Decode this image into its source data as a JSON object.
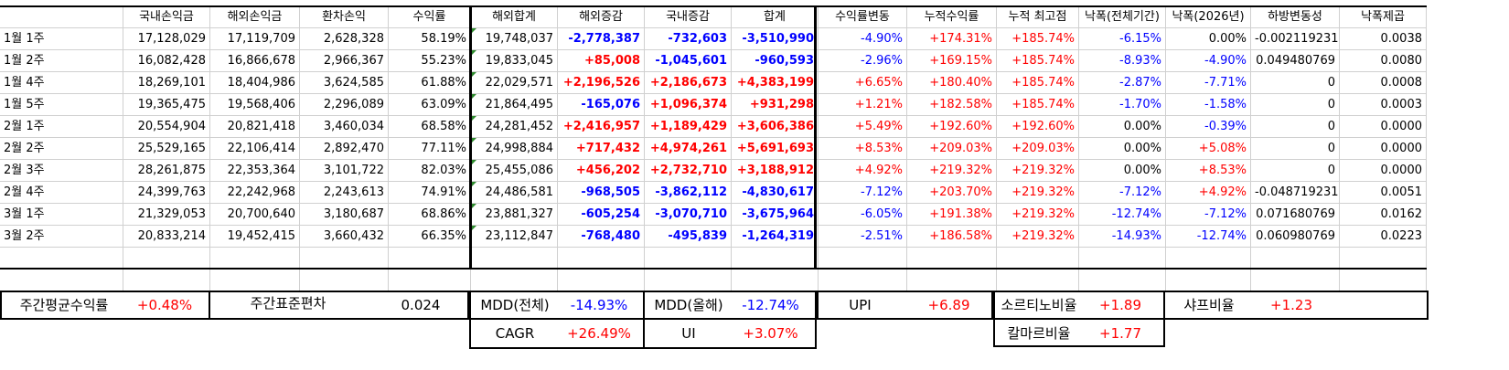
{
  "headers": [
    "국내손익금",
    "해외손익금",
    "환차손익",
    "수익률",
    "해외합계",
    "해외증감",
    "국내증감",
    "합계",
    "수익률변동",
    "누적수익률",
    "누적 최고점",
    "낙폭(전체기간)",
    "낙폭(2026년)",
    "하방변동성",
    "낙폭제곱"
  ],
  "rows": [
    {
      "label": "1월 1주",
      "cells": [
        "17,128,029",
        "17,119,709",
        "2,628,328",
        "58.19%",
        "19,748,037",
        "-2,778,387",
        "-732,603",
        "-3,510,990",
        "-4.90%",
        "+174.31%",
        "+185.74%",
        "-6.15%",
        "0.00%",
        "-0.002119231",
        "0.0038"
      ]
    },
    {
      "label": "1월 2주",
      "cells": [
        "16,082,428",
        "16,866,678",
        "2,966,367",
        "55.23%",
        "19,833,045",
        "+85,008",
        "-1,045,601",
        "-960,593",
        "-2.96%",
        "+169.15%",
        "+185.74%",
        "-8.93%",
        "-4.90%",
        "0.049480769",
        "0.0080"
      ]
    },
    {
      "label": "1월 4주",
      "cells": [
        "18,269,101",
        "18,404,986",
        "3,624,585",
        "61.88%",
        "22,029,571",
        "+2,196,526",
        "+2,186,673",
        "+4,383,199",
        "+6.65%",
        "+180.40%",
        "+185.74%",
        "-2.87%",
        "-7.71%",
        "0",
        "0.0008"
      ]
    },
    {
      "label": "1월 5주",
      "cells": [
        "19,365,475",
        "19,568,406",
        "2,296,089",
        "63.09%",
        "21,864,495",
        "-165,076",
        "+1,096,374",
        "+931,298",
        "+1.21%",
        "+182.58%",
        "+185.74%",
        "-1.70%",
        "-1.58%",
        "0",
        "0.0003"
      ]
    },
    {
      "label": "2월 1주",
      "cells": [
        "20,554,904",
        "20,821,418",
        "3,460,034",
        "68.58%",
        "24,281,452",
        "+2,416,957",
        "+1,189,429",
        "+3,606,386",
        "+5.49%",
        "+192.60%",
        "+192.60%",
        "0.00%",
        "-0.39%",
        "0",
        "0.0000"
      ]
    },
    {
      "label": "2월 2주",
      "cells": [
        "25,529,165",
        "22,106,414",
        "2,892,470",
        "77.11%",
        "24,998,884",
        "+717,432",
        "+4,974,261",
        "+5,691,693",
        "+8.53%",
        "+209.03%",
        "+209.03%",
        "0.00%",
        "+5.08%",
        "0",
        "0.0000"
      ]
    },
    {
      "label": "2월 3주",
      "cells": [
        "28,261,875",
        "22,353,364",
        "3,101,722",
        "82.03%",
        "25,455,086",
        "+456,202",
        "+2,732,710",
        "+3,188,912",
        "+4.92%",
        "+219.32%",
        "+219.32%",
        "0.00%",
        "+8.53%",
        "0",
        "0.0000"
      ]
    },
    {
      "label": "2월 4주",
      "cells": [
        "24,399,763",
        "22,242,968",
        "2,243,613",
        "74.91%",
        "24,486,581",
        "-968,505",
        "-3,862,112",
        "-4,830,617",
        "-7.12%",
        "+203.70%",
        "+219.32%",
        "-7.12%",
        "+4.92%",
        "-0.048719231",
        "0.0051"
      ]
    },
    {
      "label": "3월 1주",
      "cells": [
        "21,329,053",
        "20,700,640",
        "3,180,687",
        "68.86%",
        "23,881,327",
        "-605,254",
        "-3,070,710",
        "-3,675,964",
        "-6.05%",
        "+191.38%",
        "+219.32%",
        "-12.74%",
        "-7.12%",
        "0.071680769",
        "0.0162"
      ]
    },
    {
      "label": "3월 2주",
      "cells": [
        "20,833,214",
        "19,452,415",
        "3,660,432",
        "66.35%",
        "23,112,847",
        "-768,480",
        "-495,839",
        "-1,264,319",
        "-2.51%",
        "+186.58%",
        "+219.32%",
        "-14.93%",
        "-12.74%",
        "0.060980769",
        "0.0223"
      ]
    }
  ],
  "summary": {
    "weekly_avg_return_label": "주간평균수익률",
    "weekly_avg_return": "+0.48%",
    "weekly_std_label": "주간표준편차",
    "weekly_std": "0.024",
    "mdd_total_label": "MDD(전체)",
    "mdd_total": "-14.93%",
    "mdd_year_label": "MDD(올해)",
    "mdd_year": "-12.74%",
    "upi_label": "UPI",
    "upi": "+6.89",
    "sortino_label": "소르티노비율",
    "sortino": "+1.89",
    "sharpe_label": "샤프비율",
    "sharpe": "+1.23",
    "cagr_label": "CAGR",
    "cagr": "+26.49%",
    "ui_label": "UI",
    "ui": "+3.07%",
    "calmar_label": "칼마르비율",
    "calmar": "+1.77"
  },
  "colors": {
    "positive": "#ff0000",
    "negative": "#0000ff",
    "border": "#000000",
    "grid": "#d0d0d0",
    "comment_marker": "#2e8b2e"
  }
}
